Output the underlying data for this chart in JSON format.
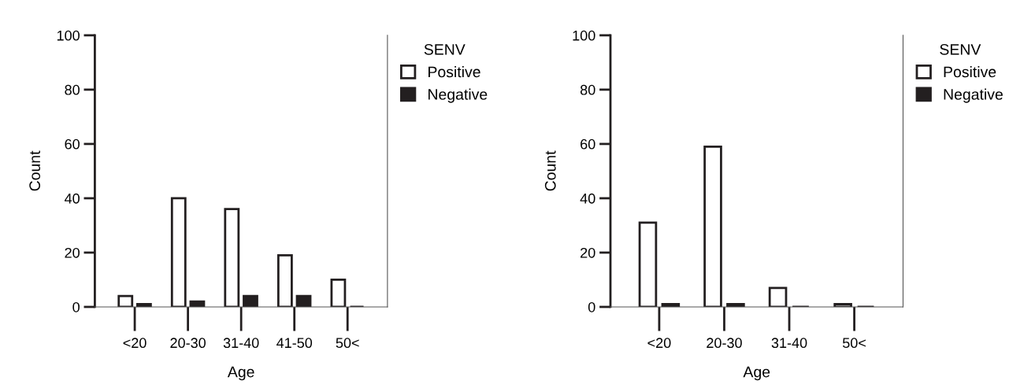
{
  "chart_data": [
    {
      "type": "bar",
      "categories": [
        "<20",
        "20-30",
        "31-40",
        "41-50",
        "50<"
      ],
      "xlabel": "Age",
      "ylabel": "Count",
      "legend_title": "SENV",
      "legend": "top right",
      "ylim": [
        0,
        100
      ],
      "yticks": [
        0,
        20,
        40,
        60,
        80,
        100
      ],
      "grid": false,
      "series": [
        {
          "name": "Positive",
          "color": "#ffffff",
          "values": [
            4,
            40,
            36,
            19,
            10
          ]
        },
        {
          "name": "Negative",
          "color": "#231f20",
          "values": [
            1,
            2,
            4,
            4,
            0
          ]
        }
      ]
    },
    {
      "type": "bar",
      "categories": [
        "<20",
        "20-30",
        "31-40",
        "50<"
      ],
      "xlabel": "Age",
      "ylabel": "Count",
      "legend_title": "SENV",
      "legend": "top right",
      "ylim": [
        0,
        100
      ],
      "yticks": [
        0,
        20,
        40,
        60,
        80,
        100
      ],
      "grid": false,
      "series": [
        {
          "name": "Positive",
          "color": "#ffffff",
          "values": [
            31,
            59,
            7,
            1
          ]
        },
        {
          "name": "Negative",
          "color": "#231f20",
          "values": [
            1,
            1,
            0,
            0
          ]
        }
      ]
    }
  ]
}
